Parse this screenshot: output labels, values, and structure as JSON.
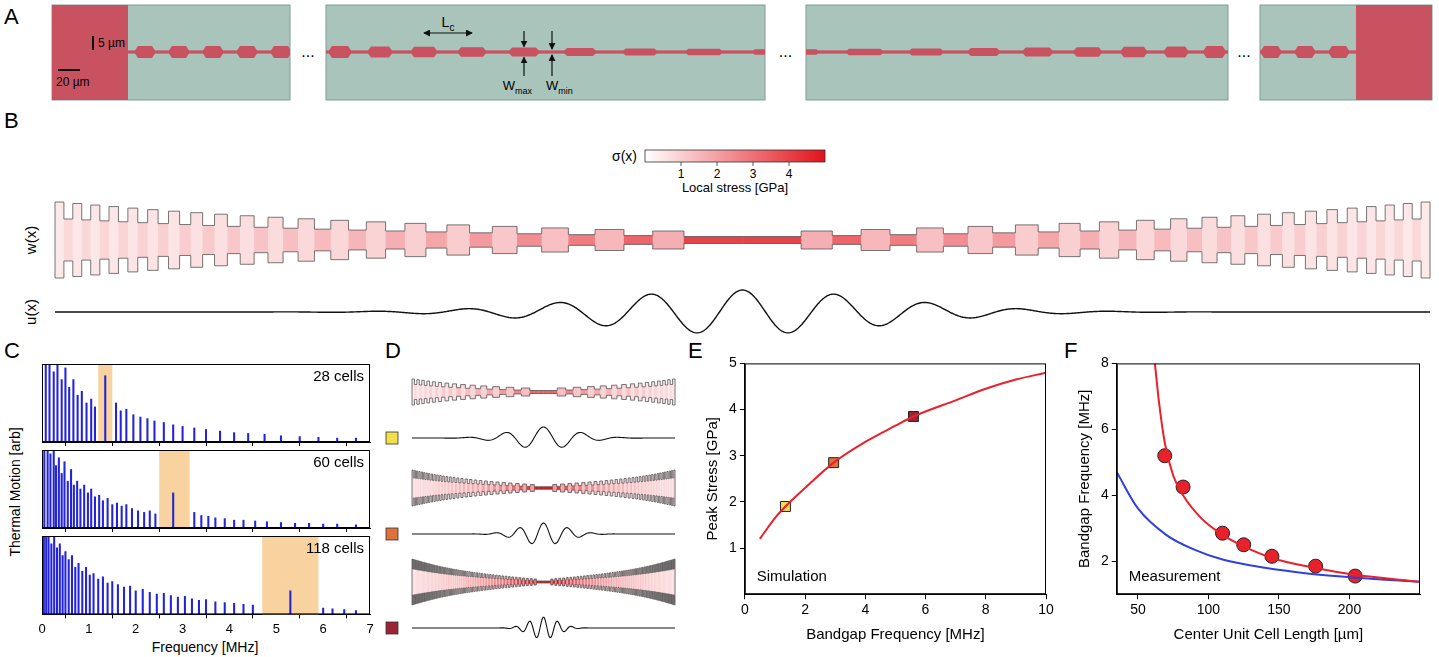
{
  "figure": {
    "A": {
      "panel_label": "A",
      "scale_bars": [
        "5 µm",
        "20 µm"
      ],
      "period_label": {
        "text": "L",
        "subscript": "c"
      },
      "width_labels": [
        {
          "text": "W",
          "subscript": "max"
        },
        {
          "text": "W",
          "subscript": "min"
        }
      ],
      "separator": "..."
    },
    "B": {
      "panel_label": "B",
      "profile_label": "w(x)",
      "mode_label": "u(x)",
      "colorbar": {
        "label": "σ(x)",
        "title": "Local stress [GPa]",
        "range": [
          0,
          5
        ],
        "ticks": [
          1,
          2,
          3,
          4
        ]
      }
    },
    "D": {
      "panel_label": "D",
      "marker": "square",
      "colors": [
        "#f2df4a",
        "#e0703c",
        "#9b2335"
      ]
    }
  },
  "chart_data": [
    {
      "panel_label": "C",
      "type": "bar",
      "x_label": "Frequency [MHz]",
      "y_label": "Thermal Motion [arb]",
      "xlim": [
        0,
        7
      ],
      "xticks": [
        0,
        1,
        2,
        3,
        4,
        5,
        6,
        7
      ],
      "ylim": [
        0,
        1
      ],
      "yticks": [],
      "tick_labels": "x",
      "color": "#2323d8",
      "subplots": [
        {
          "annotation": "28 cells",
          "bandgap": [
            1.2,
            1.5
          ],
          "x": [
            0.08,
            0.16,
            0.25,
            0.33,
            0.42,
            0.5,
            0.58,
            0.67,
            0.76,
            0.85,
            0.95,
            1.05,
            1.13,
            1.35,
            1.58,
            1.68,
            1.8,
            1.95,
            2.1,
            2.25,
            2.4,
            2.6,
            2.8,
            3.0,
            3.25,
            3.5,
            3.8,
            4.1,
            4.4,
            4.75,
            5.1,
            5.5,
            5.9,
            6.3,
            6.7
          ],
          "values": [
            1,
            1,
            0.9,
            1,
            0.8,
            0.95,
            0.7,
            0.8,
            0.6,
            0.65,
            0.5,
            0.55,
            0.45,
            0.85,
            0.5,
            0.4,
            0.42,
            0.35,
            0.32,
            0.3,
            0.27,
            0.25,
            0.22,
            0.2,
            0.18,
            0.16,
            0.14,
            0.12,
            0.11,
            0.1,
            0.08,
            0.07,
            0.06,
            0.05,
            0.05
          ]
        },
        {
          "annotation": "60 cells",
          "bandgap": [
            2.5,
            3.15
          ],
          "x": [
            0.05,
            0.12,
            0.18,
            0.25,
            0.3,
            0.36,
            0.42,
            0.48,
            0.55,
            0.62,
            0.68,
            0.75,
            0.82,
            0.9,
            0.98,
            1.05,
            1.13,
            1.22,
            1.3,
            1.4,
            1.5,
            1.6,
            1.7,
            1.8,
            1.92,
            2.05,
            2.18,
            2.3,
            2.42,
            2.8,
            3.25,
            3.4,
            3.55,
            3.7,
            3.9,
            4.1,
            4.3,
            4.55,
            4.8,
            5.1,
            5.4,
            5.7,
            6.0,
            6.3,
            6.7
          ],
          "values": [
            1,
            1,
            0.95,
            1,
            0.8,
            0.9,
            0.7,
            0.85,
            0.6,
            0.75,
            0.55,
            0.6,
            0.5,
            0.55,
            0.45,
            0.5,
            0.4,
            0.42,
            0.35,
            0.38,
            0.3,
            0.32,
            0.28,
            0.3,
            0.25,
            0.22,
            0.2,
            0.22,
            0.18,
            0.45,
            0.2,
            0.16,
            0.15,
            0.13,
            0.12,
            0.1,
            0.1,
            0.09,
            0.08,
            0.07,
            0.06,
            0.06,
            0.05,
            0.05,
            0.04
          ]
        },
        {
          "annotation": "118 cells",
          "bandgap": [
            4.7,
            5.9
          ],
          "x": [
            0.04,
            0.09,
            0.14,
            0.2,
            0.26,
            0.32,
            0.38,
            0.44,
            0.5,
            0.57,
            0.64,
            0.71,
            0.78,
            0.86,
            0.94,
            1.02,
            1.1,
            1.2,
            1.3,
            1.4,
            1.5,
            1.62,
            1.75,
            1.88,
            2.0,
            2.15,
            2.3,
            2.45,
            2.6,
            2.75,
            2.9,
            3.05,
            3.2,
            3.35,
            3.5,
            3.7,
            3.9,
            4.1,
            4.3,
            4.5,
            5.3,
            6.0,
            6.2,
            6.45,
            6.7
          ],
          "values": [
            1,
            1,
            1,
            0.9,
            1,
            0.85,
            0.9,
            0.75,
            0.8,
            0.7,
            0.75,
            0.6,
            0.65,
            0.55,
            0.6,
            0.5,
            0.52,
            0.45,
            0.48,
            0.4,
            0.42,
            0.38,
            0.35,
            0.36,
            0.3,
            0.32,
            0.28,
            0.26,
            0.27,
            0.24,
            0.22,
            0.23,
            0.2,
            0.18,
            0.19,
            0.16,
            0.15,
            0.14,
            0.13,
            0.12,
            0.3,
            0.08,
            0.07,
            0.06,
            0.05
          ]
        }
      ]
    },
    {
      "panel_label": "E",
      "type": "line",
      "x_label": "Bandgap Frequency [MHz]",
      "y_label": "Peak Stress [GPa]",
      "annotation": "Simulation",
      "xlim": [
        0,
        10
      ],
      "xticks": [
        0,
        2,
        4,
        6,
        8,
        10
      ],
      "ylim": [
        0,
        5
      ],
      "yticks": [
        1,
        2,
        3,
        4,
        5
      ],
      "series": [
        {
          "type": "line",
          "line_style": "solid",
          "color": "#e8212b",
          "x": [
            0.5,
            1,
            1.35,
            2,
            2.95,
            4,
            5,
            5.6,
            7,
            8,
            9,
            10
          ],
          "values": [
            1.2,
            1.65,
            1.9,
            2.3,
            2.85,
            3.3,
            3.65,
            3.85,
            4.2,
            4.45,
            4.65,
            4.8
          ]
        },
        {
          "type": "scatter",
          "marker": "square",
          "colors": [
            "#f2df4a",
            "#e0703c",
            "#9b2335"
          ],
          "x": [
            1.35,
            2.95,
            5.6
          ],
          "values": [
            1.9,
            2.85,
            3.85
          ]
        }
      ]
    },
    {
      "panel_label": "F",
      "type": "line",
      "x_label": "Center Unit Cell Length [µm]",
      "y_label": "Bandgap Frequency [MHz]",
      "annotation": "Measurement",
      "xlim": [
        35,
        250
      ],
      "xticks": [
        50,
        100,
        150,
        200
      ],
      "ylim": [
        1,
        8
      ],
      "yticks": [
        2,
        4,
        6,
        8
      ],
      "series": [
        {
          "type": "line",
          "line_style": "solid",
          "color": "#e8212b",
          "x": [
            62,
            65,
            69,
            75,
            82,
            95,
            110,
            125,
            145,
            175,
            205,
            250
          ],
          "values": [
            8,
            6.8,
            5.6,
            4.6,
            4.0,
            3.3,
            2.8,
            2.45,
            2.1,
            1.8,
            1.58,
            1.38
          ]
        },
        {
          "type": "line",
          "line_style": "solid",
          "color": "#2f3fe0",
          "x": [
            35,
            50,
            70,
            90,
            110,
            140,
            170,
            205,
            250
          ],
          "values": [
            4.7,
            3.6,
            2.8,
            2.35,
            2.05,
            1.8,
            1.63,
            1.5,
            1.38
          ]
        },
        {
          "type": "scatter",
          "marker": "circle",
          "color": "#e8212b",
          "x": [
            69,
            82,
            110,
            125,
            145,
            176,
            204
          ],
          "values": [
            5.2,
            4.25,
            2.85,
            2.5,
            2.15,
            1.85,
            1.55
          ]
        }
      ]
    }
  ]
}
